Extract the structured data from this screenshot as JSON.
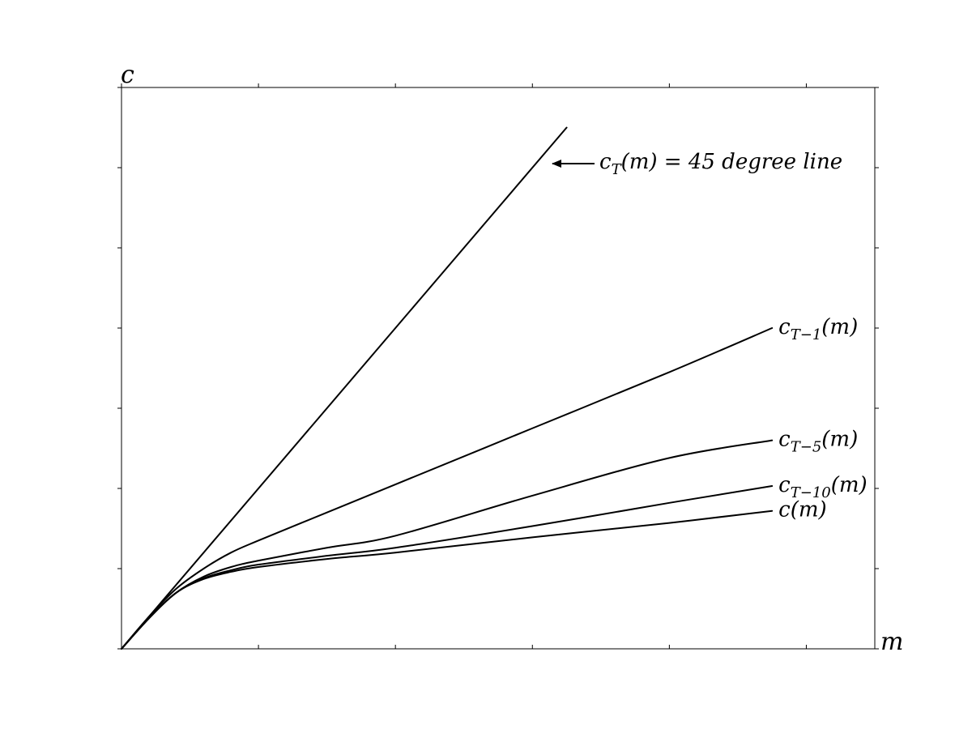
{
  "chart_data": {
    "type": "line",
    "title": "",
    "xlabel": "m",
    "ylabel": "c",
    "xlim": [
      0,
      5.5
    ],
    "ylim": [
      0,
      7
    ],
    "x_ticks": [
      0,
      1,
      2,
      3,
      4,
      5
    ],
    "y_ticks": [
      0,
      1,
      2,
      3,
      4,
      5,
      6,
      7
    ],
    "tick_labels_shown": false,
    "grid": false,
    "legend": "none (direct labels at line ends)",
    "series": [
      {
        "name": "c_T(m) = 45 degree line",
        "label": {
          "base": "c",
          "sub": "T",
          "rest": "(m) = 45 degree line"
        },
        "points": [
          [
            0,
            0
          ],
          [
            3.25,
            6.5
          ]
        ]
      },
      {
        "name": "c_{T-1}(m)",
        "label": {
          "base": "c",
          "sub": "T−1",
          "rest": "(m)"
        },
        "points": [
          [
            0,
            0
          ],
          [
            0.2,
            0.4
          ],
          [
            0.4,
            0.75
          ],
          [
            0.6,
            1.0
          ],
          [
            0.8,
            1.2
          ],
          [
            1.0,
            1.35
          ],
          [
            1.5,
            1.7
          ],
          [
            2.0,
            2.05
          ],
          [
            3.0,
            2.75
          ],
          [
            4.0,
            3.45
          ],
          [
            4.75,
            4.0
          ]
        ]
      },
      {
        "name": "c_{T-5}(m)",
        "label": {
          "base": "c",
          "sub": "T−5",
          "rest": "(m)"
        },
        "points": [
          [
            0,
            0
          ],
          [
            0.2,
            0.38
          ],
          [
            0.4,
            0.7
          ],
          [
            0.6,
            0.9
          ],
          [
            0.8,
            1.02
          ],
          [
            1.0,
            1.1
          ],
          [
            1.5,
            1.26
          ],
          [
            2.0,
            1.41
          ],
          [
            3.0,
            1.91
          ],
          [
            4.0,
            2.38
          ],
          [
            4.75,
            2.6
          ]
        ]
      },
      {
        "name": "c_{T-10}(m)",
        "label": {
          "base": "c",
          "sub": "T−10",
          "rest": "(m)"
        },
        "points": [
          [
            0,
            0
          ],
          [
            0.2,
            0.38
          ],
          [
            0.4,
            0.7
          ],
          [
            0.6,
            0.88
          ],
          [
            0.8,
            0.98
          ],
          [
            1.0,
            1.05
          ],
          [
            1.5,
            1.16
          ],
          [
            2.0,
            1.26
          ],
          [
            3.0,
            1.53
          ],
          [
            4.0,
            1.82
          ],
          [
            4.75,
            2.03
          ]
        ]
      },
      {
        "name": "c(m)",
        "label": {
          "base": "c",
          "sub": "",
          "rest": "(m)"
        },
        "points": [
          [
            0,
            0
          ],
          [
            0.2,
            0.38
          ],
          [
            0.4,
            0.7
          ],
          [
            0.6,
            0.87
          ],
          [
            0.8,
            0.96
          ],
          [
            1.0,
            1.02
          ],
          [
            1.5,
            1.12
          ],
          [
            2.0,
            1.2
          ],
          [
            3.0,
            1.39
          ],
          [
            4.0,
            1.57
          ],
          [
            4.75,
            1.72
          ]
        ]
      }
    ],
    "annotations": [
      {
        "text": "c_T(m) = 45 degree line",
        "arrow": "left",
        "points_to": "45 degree line"
      }
    ]
  }
}
